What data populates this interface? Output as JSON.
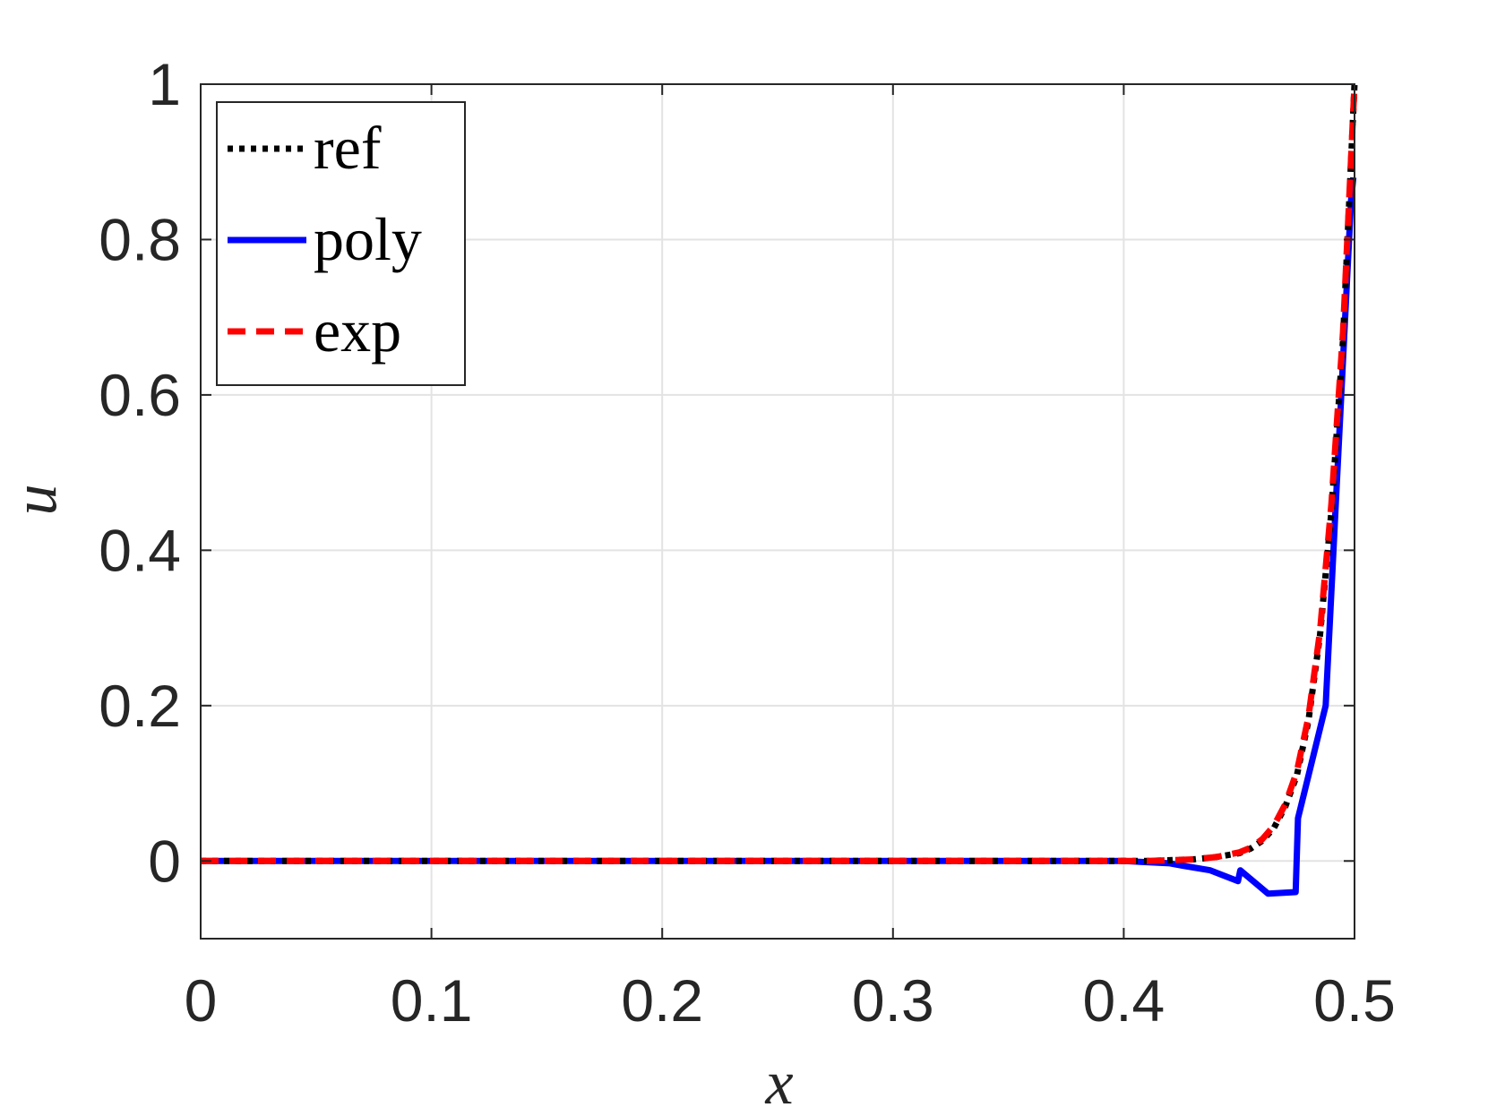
{
  "chart_data": {
    "type": "line",
    "xlabel": "x",
    "ylabel": "u",
    "xlim": [
      0,
      0.5
    ],
    "ylim": [
      -0.1,
      1
    ],
    "xticks": [
      0,
      0.1,
      0.2,
      0.3,
      0.4,
      0.5
    ],
    "xtick_labels": [
      "0",
      "0.1",
      "0.2",
      "0.3",
      "0.4",
      "0.5"
    ],
    "yticks": [
      0,
      0.2,
      0.4,
      0.6,
      0.8,
      1
    ],
    "ytick_labels": [
      "0",
      "0.2",
      "0.4",
      "0.6",
      "0.8",
      "1"
    ],
    "grid": true,
    "legend_position": "top-left",
    "series": [
      {
        "name": "ref",
        "color": "#000000",
        "style": "dotted",
        "x": [
          0,
          0.05,
          0.1,
          0.15,
          0.2,
          0.25,
          0.3,
          0.35,
          0.4,
          0.41,
          0.42,
          0.43,
          0.44,
          0.45,
          0.455,
          0.46,
          0.465,
          0.47,
          0.475,
          0.48,
          0.485,
          0.49,
          0.495,
          0.5
        ],
        "y": [
          0,
          0,
          0,
          0,
          0,
          0,
          0,
          0,
          0,
          0,
          0.001,
          0.002,
          0.005,
          0.01,
          0.016,
          0.026,
          0.042,
          0.07,
          0.11,
          0.18,
          0.29,
          0.45,
          0.67,
          1.0
        ]
      },
      {
        "name": "poly",
        "color": "#0000ff",
        "style": "solid",
        "x": [
          0,
          0.1,
          0.2,
          0.3,
          0.4,
          0.42,
          0.4255,
          0.4375,
          0.4495,
          0.4505,
          0.4625,
          0.4745,
          0.4755,
          0.4875,
          0.4985,
          0.4995
        ],
        "y": [
          0,
          0,
          0,
          0,
          0,
          -0.003,
          -0.006,
          -0.012,
          -0.026,
          -0.012,
          -0.042,
          -0.04,
          0.055,
          0.2,
          0.85,
          0.88
        ]
      },
      {
        "name": "exp",
        "color": "#ff0000",
        "style": "dashed",
        "x": [
          0,
          0.05,
          0.1,
          0.15,
          0.2,
          0.25,
          0.3,
          0.35,
          0.4,
          0.41,
          0.42,
          0.43,
          0.44,
          0.45,
          0.455,
          0.46,
          0.465,
          0.47,
          0.475,
          0.48,
          0.485,
          0.49,
          0.495,
          0.5
        ],
        "y": [
          0,
          0,
          0,
          0,
          0,
          0,
          0,
          0,
          0,
          0,
          0.001,
          0.002,
          0.005,
          0.011,
          0.017,
          0.028,
          0.045,
          0.073,
          0.115,
          0.185,
          0.295,
          0.46,
          0.68,
          1.0
        ]
      }
    ]
  }
}
